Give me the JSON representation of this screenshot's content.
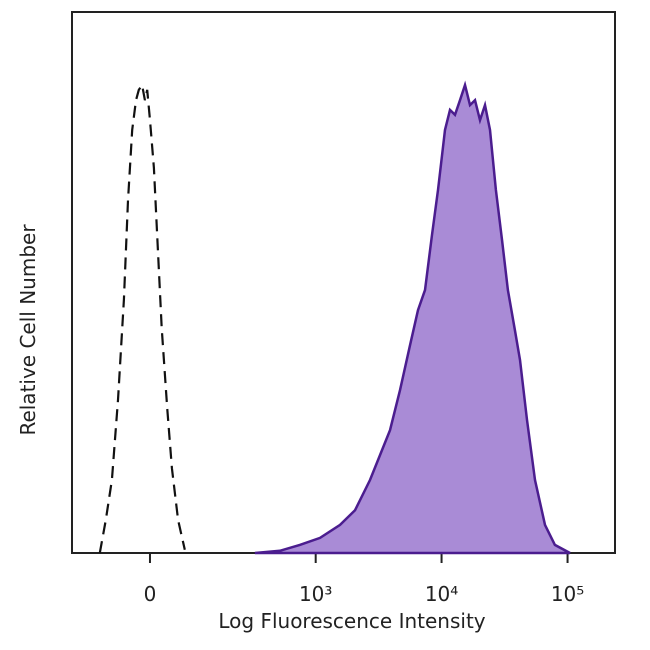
{
  "chart_data": {
    "type": "histogram-overlay",
    "xlabel": "Log Fluorescence Intensity",
    "ylabel": "Relative Cell Number",
    "xscale": "asinh",
    "asinh_cofactor": 97,
    "xlim": [
      -190,
      238000
    ],
    "ylim": [
      0,
      100
    ],
    "xticks": [
      0,
      {
        "value": 1000,
        "label": "10³"
      },
      {
        "value": 10000,
        "label": "10⁴"
      },
      {
        "value": 100000,
        "label": "10⁵"
      }
    ],
    "series": [
      {
        "style": "filled",
        "color": "#4b1d8f",
        "fill": "#a98bd6",
        "x": [
          323,
          517,
          747,
          1082,
          1561,
          2053,
          2703,
          3244,
          3895,
          4675,
          5614,
          6499,
          7385,
          8394,
          9364,
          10640,
          11670,
          12780,
          14000,
          15340,
          16810,
          18410,
          20180,
          22100,
          24230,
          27020,
          30160,
          33640,
          38230,
          41920,
          47650,
          55120,
          66190,
          79400,
          104570
        ],
        "values": [
          0,
          0.4,
          1.5,
          2.8,
          5.2,
          7.9,
          13.5,
          18.1,
          22.7,
          30.1,
          38.4,
          44.9,
          48.6,
          58.8,
          67.1,
          78.2,
          81.9,
          81.0,
          83.7,
          86.5,
          82.8,
          83.7,
          80.0,
          82.8,
          78.2,
          67.1,
          57.9,
          48.6,
          41.2,
          35.7,
          24.6,
          13.5,
          5.2,
          1.5,
          0
        ]
      },
      {
        "style": "dashed",
        "color": "#111111",
        "x": [
          -102,
          -87,
          -73,
          -60,
          -48,
          -40,
          -32,
          -25,
          -20,
          -14,
          -9,
          -5,
          0,
          7,
          14,
          21,
          31,
          40,
          52,
          66
        ],
        "values": [
          0,
          6.1,
          13.5,
          28.3,
          46.8,
          65.2,
          78.2,
          83.7,
          85.6,
          86.5,
          83.7,
          85.6,
          80.0,
          71.2,
          56.4,
          41.6,
          26.8,
          15.7,
          6.1,
          0.6
        ]
      }
    ]
  }
}
